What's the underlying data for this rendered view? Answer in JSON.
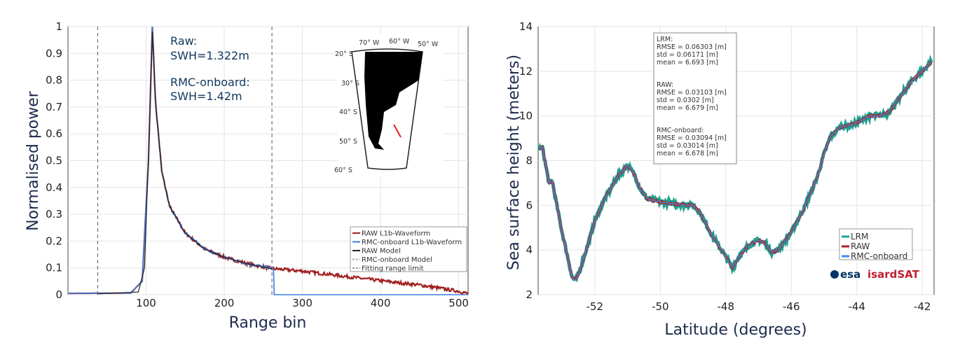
{
  "chart_data": [
    {
      "type": "line",
      "title": "",
      "xlabel": "Range bin",
      "ylabel": "Normalised power",
      "xlim": [
        0,
        512
      ],
      "ylim": [
        0,
        1
      ],
      "xticks": [
        100,
        200,
        300,
        400,
        500
      ],
      "yticks": [
        0,
        0.1,
        0.2,
        0.3,
        0.4,
        0.5,
        0.6,
        0.7,
        0.8,
        0.9,
        1
      ],
      "grid": true,
      "annotations": [
        "Raw:",
        "SWH=1.322m",
        "RMC-onboard:",
        "SWH=1.42m"
      ],
      "fitting_range_limits": [
        38,
        261
      ],
      "legend": {
        "placement": "bottom-right",
        "entries": [
          "RAW L1b-Waveform",
          "RMC-onboard L1b-Waveform",
          "RAW Model",
          "RMC-onboard Model",
          "Fitting range limit"
        ]
      },
      "inset_map": {
        "lon_labels": [
          "70° W",
          "60° W",
          "50° W"
        ],
        "lat_labels": [
          "20° S",
          "30° S",
          "40° S",
          "50° S",
          "60° S"
        ]
      },
      "series": [
        {
          "name": "RAW L1b-Waveform",
          "color": "#a02020",
          "x": [
            1,
            80,
            95,
            103,
            108,
            112,
            120,
            130,
            150,
            175,
            200,
            230,
            263,
            300,
            350,
            400,
            450,
            500,
            512
          ],
          "y": [
            0.005,
            0.006,
            0.05,
            0.5,
            1.0,
            0.72,
            0.46,
            0.33,
            0.23,
            0.17,
            0.14,
            0.115,
            0.097,
            0.088,
            0.07,
            0.052,
            0.036,
            0.013,
            0.004
          ]
        },
        {
          "name": "RMC-onboard L1b-Waveform",
          "color": "#3a7de0",
          "x": [
            1,
            80,
            95,
            103,
            108,
            112,
            120,
            130,
            150,
            175,
            200,
            230,
            263,
            264,
            512
          ],
          "y": [
            0.005,
            0.006,
            0.05,
            0.5,
            1.0,
            0.72,
            0.46,
            0.33,
            0.23,
            0.17,
            0.14,
            0.115,
            0.097,
            0,
            0
          ]
        },
        {
          "name": "RAW Model",
          "color": "#222222",
          "x": [
            38,
            90,
            98,
            104,
            108,
            112,
            120,
            130,
            150,
            175,
            200,
            230,
            261
          ],
          "y": [
            0.003,
            0.01,
            0.1,
            0.6,
            0.98,
            0.72,
            0.46,
            0.33,
            0.23,
            0.17,
            0.14,
            0.115,
            0.097
          ]
        }
      ]
    },
    {
      "type": "line",
      "title": "",
      "xlabel": "Latitude (degrees)",
      "ylabel": "Sea surface height (meters)",
      "xlim": [
        -53.73,
        -41.64
      ],
      "ylim": [
        2,
        14
      ],
      "xticks": [
        -52,
        -50,
        -48,
        -46,
        -44,
        -42
      ],
      "yticks": [
        2,
        4,
        6,
        8,
        10,
        12,
        14
      ],
      "grid": true,
      "stats": [
        {
          "title": "LRM:",
          "lines": [
            "RMSE = 0.06303 [m]",
            "std = 0.06171 [m]",
            "mean = 6.693 [m]"
          ]
        },
        {
          "title": "RAW:",
          "lines": [
            "RMSE = 0.03103 [m]",
            "std = 0.0302 [m]",
            "mean = 6.679 [m]"
          ]
        },
        {
          "title": "RMC-onboard:",
          "lines": [
            "RMSE = 0.03094 [m]",
            "std = 0.03014 [m]",
            "mean = 6.678 [m]"
          ]
        }
      ],
      "legend": {
        "placement": "bottom-right",
        "entries": [
          "LRM",
          "RAW",
          "RMC-onboard"
        ]
      },
      "logos": [
        "esa",
        "isardSAT"
      ],
      "x": [
        -53.7,
        -53.6,
        -53.5,
        -53.4,
        -53.3,
        -53.2,
        -53.0,
        -52.8,
        -52.7,
        -52.6,
        -52.5,
        -52.2,
        -52.0,
        -51.7,
        -51.3,
        -51.0,
        -50.8,
        -50.6,
        -50.4,
        -50.0,
        -49.5,
        -49.0,
        -48.8,
        -48.4,
        -48.0,
        -47.8,
        -47.6,
        -47.3,
        -47.0,
        -46.8,
        -46.6,
        -46.4,
        -46.0,
        -45.6,
        -45.2,
        -45.0,
        -44.8,
        -44.5,
        -44.2,
        -44.0,
        -43.6,
        -43.3,
        -43.0,
        -42.7,
        -42.3,
        -42.0,
        -41.7
      ],
      "series": [
        {
          "name": "LRM",
          "color": "#20a090",
          "noise": 0.1,
          "y": [
            8.5,
            8.6,
            7.8,
            7.0,
            7.1,
            6.3,
            4.8,
            3.5,
            2.8,
            2.65,
            2.9,
            4.3,
            5.3,
            6.3,
            7.3,
            7.8,
            7.4,
            6.7,
            6.3,
            6.15,
            6.05,
            6.0,
            5.7,
            4.6,
            3.7,
            3.2,
            3.7,
            4.2,
            4.45,
            4.3,
            3.9,
            4.0,
            4.8,
            5.9,
            7.3,
            8.3,
            9.1,
            9.5,
            9.6,
            9.7,
            10.0,
            10.0,
            10.2,
            10.8,
            11.6,
            12.0,
            12.45
          ]
        },
        {
          "name": "RAW",
          "color": "#b02020",
          "noise": 0.04
        },
        {
          "name": "RMC-onboard",
          "color": "#3a8ef0",
          "noise": 0.02
        }
      ]
    }
  ]
}
